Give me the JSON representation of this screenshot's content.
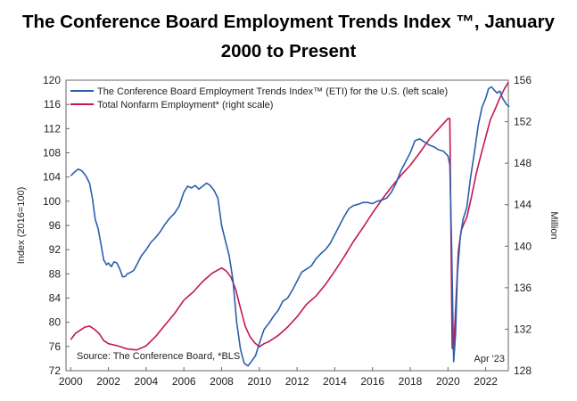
{
  "chart_data": {
    "type": "line",
    "title_line1": "The Conference Board Employment Trends Index ™, January",
    "title_line2": "2000 to Present",
    "left_axis": {
      "label": "Index (2016=100)",
      "range": [
        72,
        120
      ],
      "ticks": [
        "72",
        "76",
        "80",
        "84",
        "88",
        "92",
        "96",
        "100",
        "104",
        "108",
        "112",
        "116",
        "120"
      ]
    },
    "right_axis": {
      "label": "Million",
      "range": [
        128,
        156
      ],
      "ticks": [
        "128",
        "132",
        "136",
        "140",
        "144",
        "148",
        "152",
        "156"
      ]
    },
    "x_axis": {
      "range": [
        1999.75,
        2023.2
      ],
      "ticks": [
        "2000",
        "2002",
        "2004",
        "2006",
        "2008",
        "2010",
        "2012",
        "2014",
        "2016",
        "2018",
        "2020",
        "2022"
      ]
    },
    "grid": false,
    "legend_position": "top-left",
    "source": "Source: The Conference Board, *BLS",
    "date_note": "Apr '23",
    "series": [
      {
        "name": "The Conference Board Employment Trends Index™ (ETI) for the U.S. (left scale)",
        "axis": "left",
        "color": "#2a5fae",
        "points": [
          [
            2000.0,
            104.2
          ],
          [
            2000.2,
            104.8
          ],
          [
            2000.4,
            105.3
          ],
          [
            2000.6,
            105.0
          ],
          [
            2000.8,
            104.2
          ],
          [
            2001.0,
            103.0
          ],
          [
            2001.15,
            100.5
          ],
          [
            2001.3,
            97.0
          ],
          [
            2001.45,
            95.5
          ],
          [
            2001.6,
            93.0
          ],
          [
            2001.75,
            90.3
          ],
          [
            2001.9,
            89.5
          ],
          [
            2002.0,
            89.8
          ],
          [
            2002.15,
            89.2
          ],
          [
            2002.3,
            90.0
          ],
          [
            2002.45,
            89.8
          ],
          [
            2002.6,
            88.8
          ],
          [
            2002.75,
            87.5
          ],
          [
            2002.9,
            87.6
          ],
          [
            2003.0,
            88.0
          ],
          [
            2003.15,
            88.2
          ],
          [
            2003.35,
            88.6
          ],
          [
            2003.55,
            89.8
          ],
          [
            2003.75,
            91.0
          ],
          [
            2004.0,
            92.0
          ],
          [
            2004.25,
            93.2
          ],
          [
            2004.5,
            94.0
          ],
          [
            2004.75,
            95.0
          ],
          [
            2005.0,
            96.2
          ],
          [
            2005.25,
            97.2
          ],
          [
            2005.5,
            98.0
          ],
          [
            2005.75,
            99.2
          ],
          [
            2006.0,
            101.5
          ],
          [
            2006.2,
            102.5
          ],
          [
            2006.4,
            102.2
          ],
          [
            2006.6,
            102.6
          ],
          [
            2006.8,
            102.0
          ],
          [
            2007.0,
            102.5
          ],
          [
            2007.2,
            103.0
          ],
          [
            2007.4,
            102.6
          ],
          [
            2007.6,
            101.8
          ],
          [
            2007.8,
            100.5
          ],
          [
            2008.0,
            96.0
          ],
          [
            2008.2,
            93.5
          ],
          [
            2008.4,
            91.0
          ],
          [
            2008.6,
            87.0
          ],
          [
            2008.8,
            80.0
          ],
          [
            2009.0,
            75.5
          ],
          [
            2009.2,
            73.2
          ],
          [
            2009.4,
            72.8
          ],
          [
            2009.6,
            73.6
          ],
          [
            2009.8,
            74.5
          ],
          [
            2010.0,
            76.5
          ],
          [
            2010.25,
            78.8
          ],
          [
            2010.5,
            79.8
          ],
          [
            2010.75,
            81.0
          ],
          [
            2011.0,
            82.0
          ],
          [
            2011.25,
            83.5
          ],
          [
            2011.5,
            84.0
          ],
          [
            2011.75,
            85.3
          ],
          [
            2012.0,
            86.8
          ],
          [
            2012.25,
            88.3
          ],
          [
            2012.5,
            88.8
          ],
          [
            2012.75,
            89.3
          ],
          [
            2013.0,
            90.5
          ],
          [
            2013.25,
            91.3
          ],
          [
            2013.5,
            92.0
          ],
          [
            2013.75,
            93.0
          ],
          [
            2014.0,
            94.5
          ],
          [
            2014.25,
            96.0
          ],
          [
            2014.5,
            97.5
          ],
          [
            2014.75,
            98.8
          ],
          [
            2015.0,
            99.3
          ],
          [
            2015.25,
            99.5
          ],
          [
            2015.5,
            99.8
          ],
          [
            2015.75,
            99.8
          ],
          [
            2016.0,
            99.6
          ],
          [
            2016.25,
            100.0
          ],
          [
            2016.5,
            100.2
          ],
          [
            2016.75,
            100.5
          ],
          [
            2017.0,
            101.5
          ],
          [
            2017.25,
            103.0
          ],
          [
            2017.5,
            105.0
          ],
          [
            2017.75,
            106.5
          ],
          [
            2018.0,
            108.0
          ],
          [
            2018.25,
            110.0
          ],
          [
            2018.5,
            110.3
          ],
          [
            2018.75,
            109.8
          ],
          [
            2019.0,
            109.3
          ],
          [
            2019.25,
            109.0
          ],
          [
            2019.5,
            108.5
          ],
          [
            2019.75,
            108.3
          ],
          [
            2020.0,
            107.5
          ],
          [
            2020.1,
            106.0
          ],
          [
            2020.2,
            92.0
          ],
          [
            2020.3,
            73.5
          ],
          [
            2020.4,
            78.0
          ],
          [
            2020.5,
            88.0
          ],
          [
            2020.65,
            94.0
          ],
          [
            2020.8,
            97.0
          ],
          [
            2021.0,
            99.0
          ],
          [
            2021.2,
            104.0
          ],
          [
            2021.4,
            108.0
          ],
          [
            2021.6,
            112.5
          ],
          [
            2021.8,
            115.5
          ],
          [
            2022.0,
            117.0
          ],
          [
            2022.15,
            118.6
          ],
          [
            2022.3,
            118.9
          ],
          [
            2022.45,
            118.4
          ],
          [
            2022.6,
            117.9
          ],
          [
            2022.75,
            118.2
          ],
          [
            2022.9,
            117.0
          ],
          [
            2023.0,
            116.5
          ],
          [
            2023.1,
            116.0
          ],
          [
            2023.25,
            115.6
          ]
        ]
      },
      {
        "name": "Total Nonfarm Employment* (right scale)",
        "axis": "right",
        "color": "#c4174f",
        "points": [
          [
            2000.0,
            131.0
          ],
          [
            2000.25,
            131.6
          ],
          [
            2000.5,
            131.9
          ],
          [
            2000.75,
            132.2
          ],
          [
            2001.0,
            132.3
          ],
          [
            2001.25,
            132.0
          ],
          [
            2001.5,
            131.6
          ],
          [
            2001.75,
            130.9
          ],
          [
            2002.0,
            130.6
          ],
          [
            2002.5,
            130.4
          ],
          [
            2003.0,
            130.1
          ],
          [
            2003.5,
            130.0
          ],
          [
            2004.0,
            130.4
          ],
          [
            2004.5,
            131.3
          ],
          [
            2005.0,
            132.4
          ],
          [
            2005.5,
            133.5
          ],
          [
            2006.0,
            134.8
          ],
          [
            2006.5,
            135.6
          ],
          [
            2007.0,
            136.6
          ],
          [
            2007.5,
            137.4
          ],
          [
            2008.0,
            137.9
          ],
          [
            2008.25,
            137.6
          ],
          [
            2008.5,
            137.0
          ],
          [
            2008.75,
            135.8
          ],
          [
            2009.0,
            134.0
          ],
          [
            2009.25,
            132.3
          ],
          [
            2009.5,
            131.3
          ],
          [
            2009.75,
            130.7
          ],
          [
            2010.0,
            130.3
          ],
          [
            2010.25,
            130.6
          ],
          [
            2010.5,
            130.8
          ],
          [
            2011.0,
            131.4
          ],
          [
            2011.5,
            132.2
          ],
          [
            2012.0,
            133.2
          ],
          [
            2012.5,
            134.4
          ],
          [
            2013.0,
            135.2
          ],
          [
            2013.5,
            136.3
          ],
          [
            2014.0,
            137.6
          ],
          [
            2014.5,
            139.0
          ],
          [
            2015.0,
            140.5
          ],
          [
            2015.5,
            141.8
          ],
          [
            2016.0,
            143.2
          ],
          [
            2016.5,
            144.5
          ],
          [
            2017.0,
            145.7
          ],
          [
            2017.5,
            146.8
          ],
          [
            2018.0,
            147.8
          ],
          [
            2018.5,
            149.0
          ],
          [
            2019.0,
            150.3
          ],
          [
            2019.5,
            151.3
          ],
          [
            2020.0,
            152.3
          ],
          [
            2020.1,
            152.3
          ],
          [
            2020.22,
            130.2
          ],
          [
            2020.3,
            130.0
          ],
          [
            2020.4,
            133.8
          ],
          [
            2020.55,
            139.5
          ],
          [
            2020.7,
            141.5
          ],
          [
            2020.85,
            142.2
          ],
          [
            2021.0,
            142.8
          ],
          [
            2021.25,
            144.8
          ],
          [
            2021.5,
            147.0
          ],
          [
            2021.75,
            148.8
          ],
          [
            2022.0,
            150.5
          ],
          [
            2022.25,
            152.2
          ],
          [
            2022.5,
            153.2
          ],
          [
            2022.75,
            154.3
          ],
          [
            2023.0,
            155.2
          ],
          [
            2023.2,
            155.8
          ]
        ]
      }
    ]
  }
}
